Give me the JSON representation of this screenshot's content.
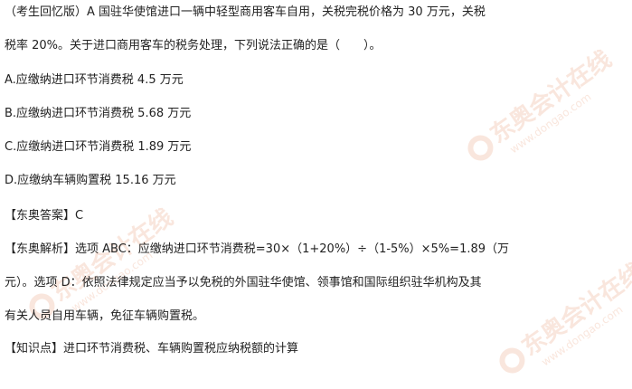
{
  "question": {
    "line1": "（考生回忆版）A 国驻华使馆进口一辆中轻型商用客车自用，关税完税价格为 30 万元，关税",
    "line2": "税率 20%。关于进口商用客车的税务处理，下列说法正确的是（　　）。"
  },
  "options": [
    "A.应缴纳进口环节消费税 4.5 万元",
    "B.应缴纳进口环节消费税 5.68 万元",
    "C.应缴纳进口环节消费税 1.89 万元",
    "D.应缴纳车辆购置税 15.16 万元"
  ],
  "answer": "【东奥答案】C",
  "analysis": {
    "line1": "【东奥解析】选项 ABC：应缴纳进口环节消费税=30×（1+20%）÷（1-5%）×5%=1.89（万",
    "line2": "元）。选项 D：依照法律规定应当予以免税的外国驻华使馆、领事馆和国际组织驻华机构及其",
    "line3": "有关人员自用车辆，免征车辆购置税。"
  },
  "knowledge_point": "【知识点】进口环节消费税、车辆购置税应纳税额的计算",
  "watermark": {
    "brand": "东奥会计在线",
    "site": "www.dongao.com",
    "color": "#f3c9b5"
  }
}
